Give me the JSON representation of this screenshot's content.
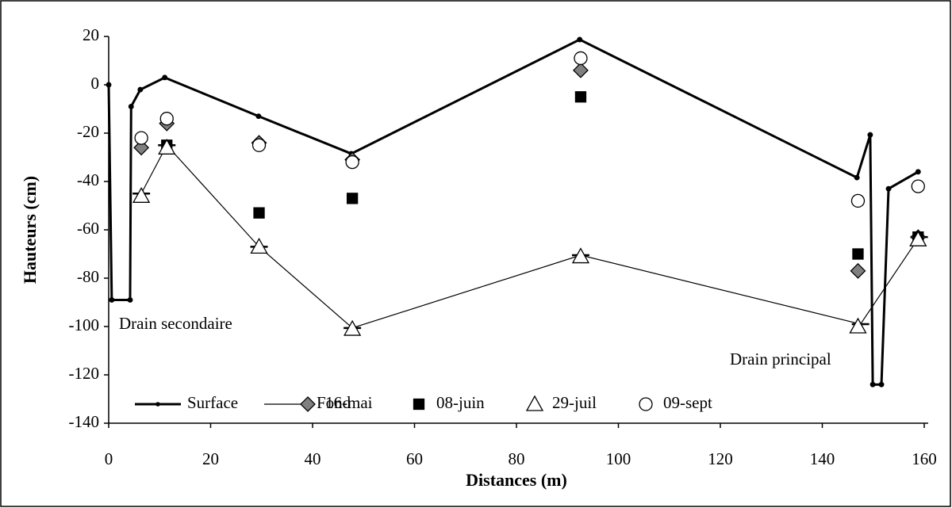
{
  "chart_data": {
    "type": "line",
    "x_label": "Distances (m)",
    "y_label": "Hauteurs (cm)",
    "xlim": [
      0,
      160
    ],
    "ylim": [
      -140,
      20
    ],
    "xticks": [
      0,
      20,
      40,
      60,
      80,
      100,
      120,
      140,
      160
    ],
    "yticks": [
      -140,
      -120,
      -100,
      -80,
      -60,
      -40,
      -20,
      0,
      20
    ],
    "annotations": [
      "Drain secondaire",
      "Drain principal"
    ],
    "series": [
      {
        "name": "Surface",
        "marker": "line-dot",
        "color": "#000000",
        "x": [
          0,
          0.6,
          4.2,
          4.4,
          6.2,
          11,
          29.4,
          47.6,
          92.4,
          146.8,
          149.4,
          149.9,
          151.6,
          153,
          158.8
        ],
        "values": [
          0,
          -89,
          -89,
          -9,
          -2,
          3,
          -13,
          -28.5,
          18.7,
          -38.4,
          -20.7,
          -124,
          -124,
          -43,
          -36
        ]
      },
      {
        "name": "Fond",
        "marker": "line-dash",
        "color": "#000000",
        "x": [
          6.4,
          11.4,
          29.5,
          47.8,
          92.6,
          147.5,
          159
        ],
        "values": [
          -45,
          -25,
          -67,
          -100.6,
          -70.5,
          -99,
          -63
        ]
      },
      {
        "name": "16-mai",
        "marker": "diamond",
        "color": "#808080",
        "x": [
          6.4,
          11.4,
          29.5,
          47.8,
          92.6,
          147,
          158.8
        ],
        "values": [
          -26,
          -16,
          -24,
          -31,
          6,
          -77,
          -63
        ]
      },
      {
        "name": "08-juin",
        "marker": "square",
        "color": "#000000",
        "x": [
          11.4,
          29.5,
          47.8,
          92.6,
          147,
          158.8
        ],
        "values": [
          -25,
          -53,
          -47,
          -5,
          -70,
          -63
        ]
      },
      {
        "name": "29-juil",
        "marker": "triangle",
        "color": "#ffffff",
        "x": [
          6.4,
          11.4,
          29.5,
          47.8,
          92.6,
          147,
          158.8
        ],
        "values": [
          -46,
          -26,
          -67,
          -101,
          -71,
          -100,
          -64
        ]
      },
      {
        "name": "09-sept",
        "marker": "circle",
        "color": "#ffffff",
        "x": [
          6.4,
          11.4,
          29.5,
          47.8,
          92.6,
          147,
          158.8
        ],
        "values": [
          -22,
          -14,
          -25,
          -32,
          11,
          -48,
          -42
        ]
      }
    ]
  }
}
